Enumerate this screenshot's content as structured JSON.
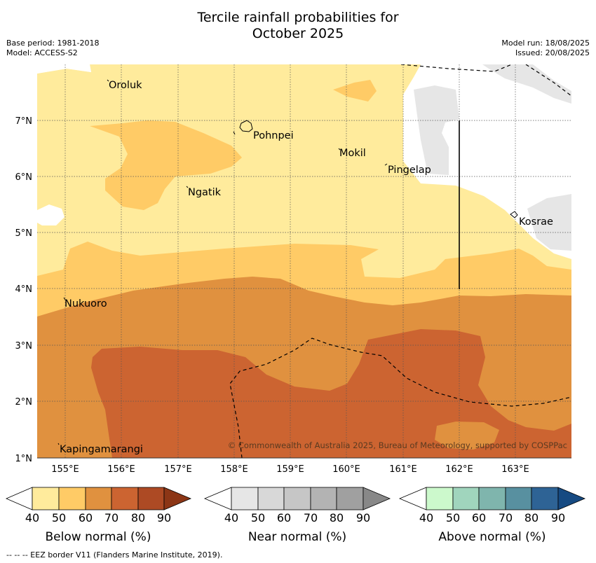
{
  "title_line1": "Tercile rainfall probabilities for",
  "title_line2": "October 2025",
  "meta": {
    "base_period": "Base period: 1981-2018",
    "model": "Model: ACCESS-S2",
    "model_run": "Model run: 18/08/2025",
    "issued": "Issued: 20/08/2025"
  },
  "map": {
    "lon_ticks": [
      "155°E",
      "156°E",
      "157°E",
      "158°E",
      "159°E",
      "160°E",
      "161°E",
      "162°E",
      "163°E"
    ],
    "lat_ticks": [
      "7°N",
      "6°N",
      "5°N",
      "4°N",
      "3°N",
      "2°N",
      "1°N"
    ],
    "places": [
      {
        "name": "Oroluk"
      },
      {
        "name": "Pohnpei"
      },
      {
        "name": "Mokil"
      },
      {
        "name": "Pingelap"
      },
      {
        "name": "Ngatik"
      },
      {
        "name": "Kosrae"
      },
      {
        "name": "Nukuoro"
      },
      {
        "name": "Kapingamarangi"
      }
    ],
    "copyright": "© Commonwealth of Australia 2025, Bureau of Meteorology, supported by COSPPac"
  },
  "colorbars": [
    {
      "label": "Below normal (%)",
      "colors": [
        "#ffffff",
        "#ffeb9c",
        "#ffcb66",
        "#e0913f",
        "#cc6431",
        "#ad4a24",
        "#8c3616"
      ],
      "ticks": [
        "40",
        "50",
        "60",
        "70",
        "80",
        "90"
      ]
    },
    {
      "label": "Near normal (%)",
      "colors": [
        "#ffffff",
        "#e6e6e6",
        "#d8d8d8",
        "#c6c6c6",
        "#b3b3b3",
        "#a0a0a0",
        "#888888"
      ],
      "ticks": [
        "40",
        "50",
        "60",
        "70",
        "80",
        "90"
      ]
    },
    {
      "label": "Above normal (%)",
      "colors": [
        "#ffffff",
        "#ccf9cc",
        "#a0d5bd",
        "#7fb5ad",
        "#5890a0",
        "#2e6395",
        "#164a82"
      ],
      "ticks": [
        "40",
        "50",
        "60",
        "70",
        "80",
        "90"
      ]
    }
  ],
  "footnote": "--  --  -- EEZ border V11 (Flanders Marine Institute, 2019)."
}
